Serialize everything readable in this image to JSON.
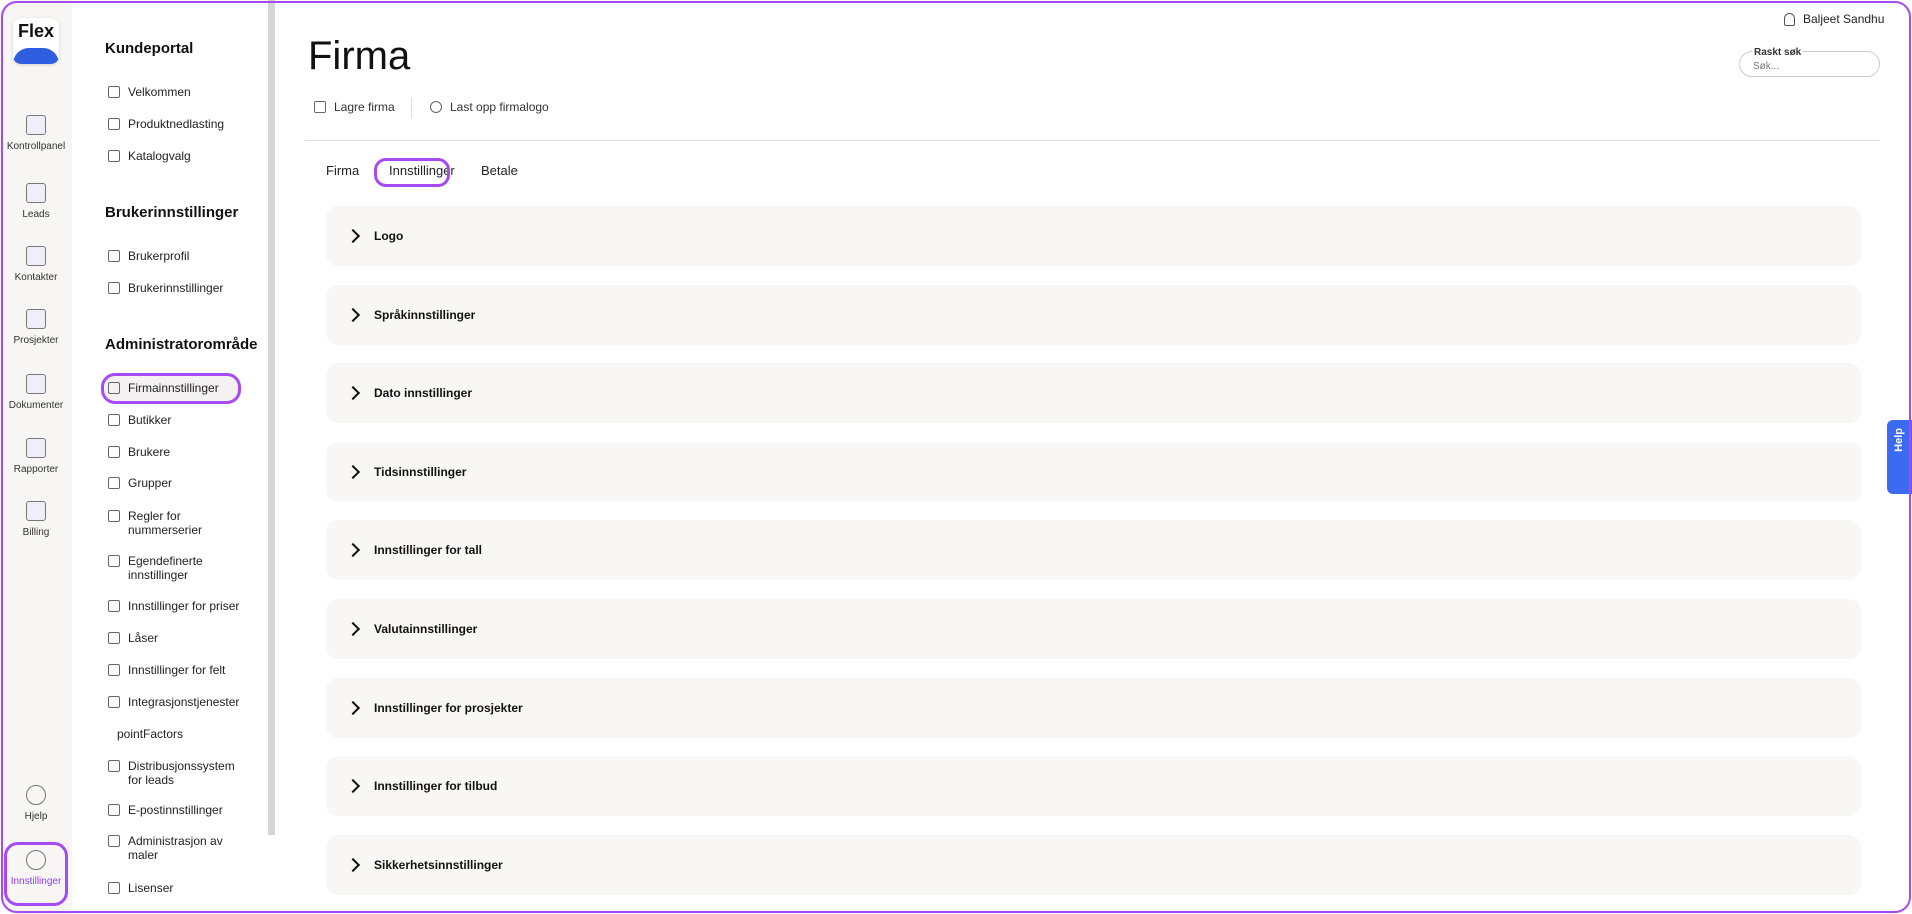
{
  "brand": {
    "logo_text": "Flex",
    "accent": "#a64bf4",
    "help_color": "#3d6af2"
  },
  "rail": [
    {
      "label": "Kontrollpanel",
      "icon": "dashboard-icon"
    },
    {
      "label": "Leads",
      "icon": "people-icon"
    },
    {
      "label": "Kontakter",
      "icon": "contact-card-icon"
    },
    {
      "label": "Prosjekter",
      "icon": "folder-icon"
    },
    {
      "label": "Dokumenter",
      "icon": "document-box-icon"
    },
    {
      "label": "Rapporter",
      "icon": "report-icon"
    },
    {
      "label": "Billing",
      "icon": "billing-icon"
    },
    {
      "label": "Hjelp",
      "icon": "question-icon"
    },
    {
      "label": "Innstillinger",
      "icon": "gear-icon",
      "active": true
    }
  ],
  "sidebar": {
    "sections": [
      {
        "title": "Kundeportal",
        "items": [
          "Velkommen",
          "Produktnedlasting",
          "Katalogvalg"
        ]
      },
      {
        "title": "Brukerinnstillinger",
        "items": [
          "Brukerprofil",
          "Brukerinnstillinger"
        ]
      },
      {
        "title": "Administratorområde",
        "items": [
          "Firmainnstillinger",
          "Butikker",
          "Brukere",
          "Grupper",
          "Regler for nummerserier",
          "Egendefinerte innstillinger",
          "Innstillinger for priser",
          "Låser",
          "Innstillinger for felt",
          "Integrasjonstjenester",
          "pointFactors",
          "Distribusjonssystem for leads",
          "E-postinnstillinger",
          "Administrasjon av maler",
          "Lisenser"
        ]
      }
    ],
    "active": "Firmainnstillinger"
  },
  "header": {
    "title": "Firma",
    "user": "Baljeet Sandhu",
    "search_label": "Raskt søk",
    "search_placeholder": "Søk...",
    "help": "Help"
  },
  "toolbar": {
    "save": "Lagre firma",
    "upload": "Last opp firmalogo"
  },
  "tabs": [
    {
      "label": "Firma"
    },
    {
      "label": "Innstillinger",
      "active": true
    },
    {
      "label": "Betale"
    }
  ],
  "accordions": [
    "Logo",
    "Språkinnstillinger",
    "Dato innstillinger",
    "Tidsinnstillinger",
    "Innstillinger for tall",
    "Valutainnstillinger",
    "Innstillinger for prosjekter",
    "Innstillinger for tilbud",
    "Sikkerhetsinnstillinger"
  ]
}
